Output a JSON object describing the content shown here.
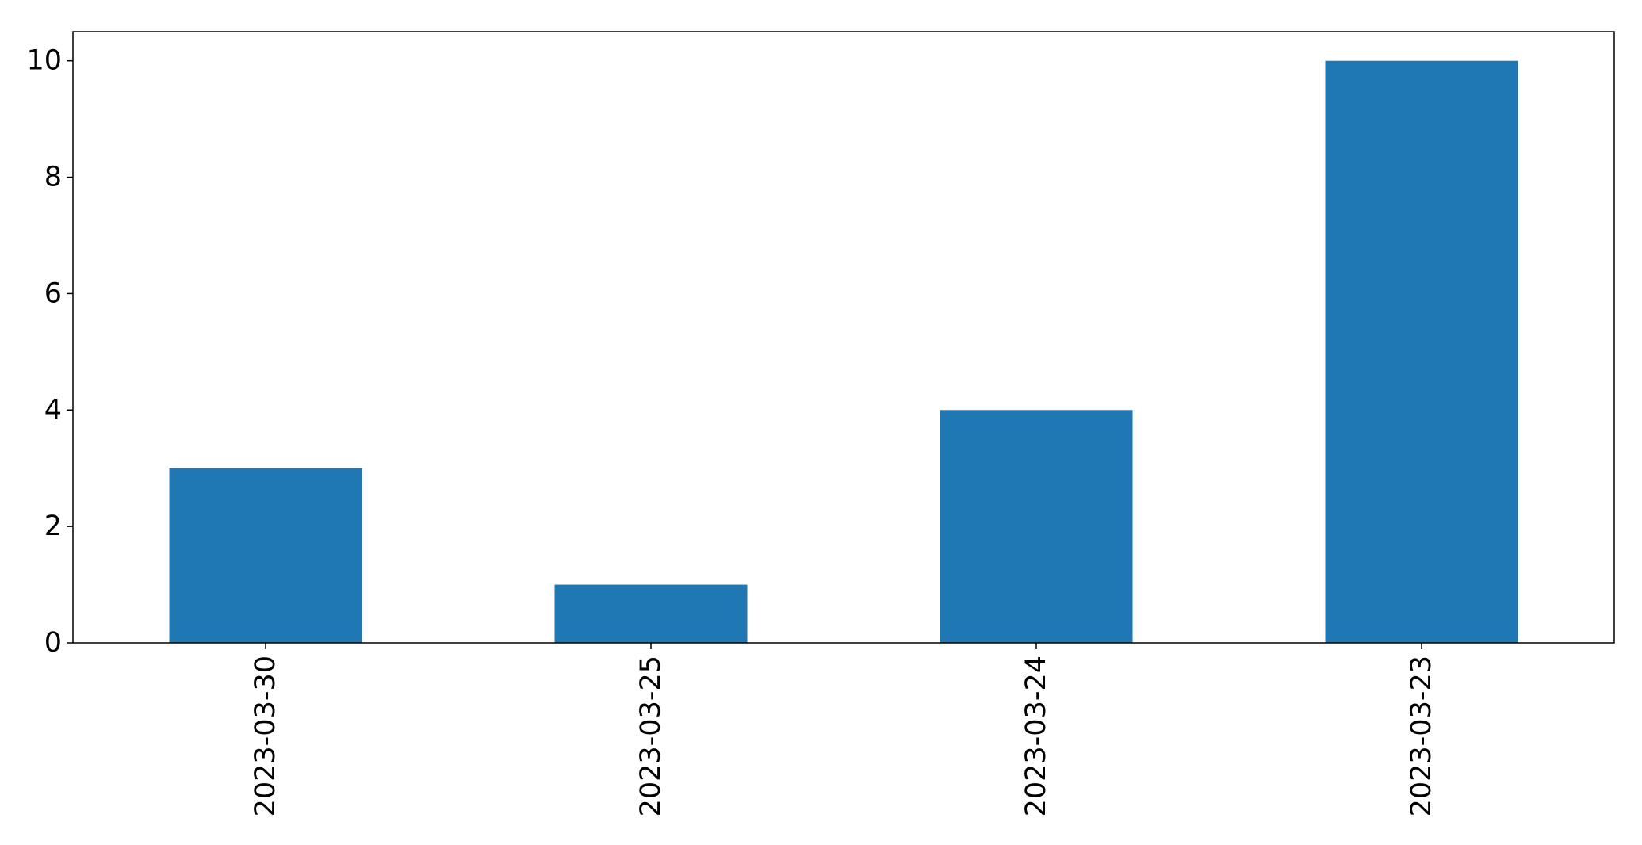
{
  "chart_data": {
    "type": "bar",
    "categories": [
      "2023-03-30",
      "2023-03-25",
      "2023-03-24",
      "2023-03-23"
    ],
    "values": [
      3,
      1,
      4,
      10
    ],
    "ylim": [
      0,
      10.5
    ],
    "yticks": [
      0,
      2,
      4,
      6,
      8,
      10
    ],
    "bar_color": "#1f77b4",
    "grid": false,
    "title": "",
    "xlabel": "",
    "ylabel": ""
  }
}
